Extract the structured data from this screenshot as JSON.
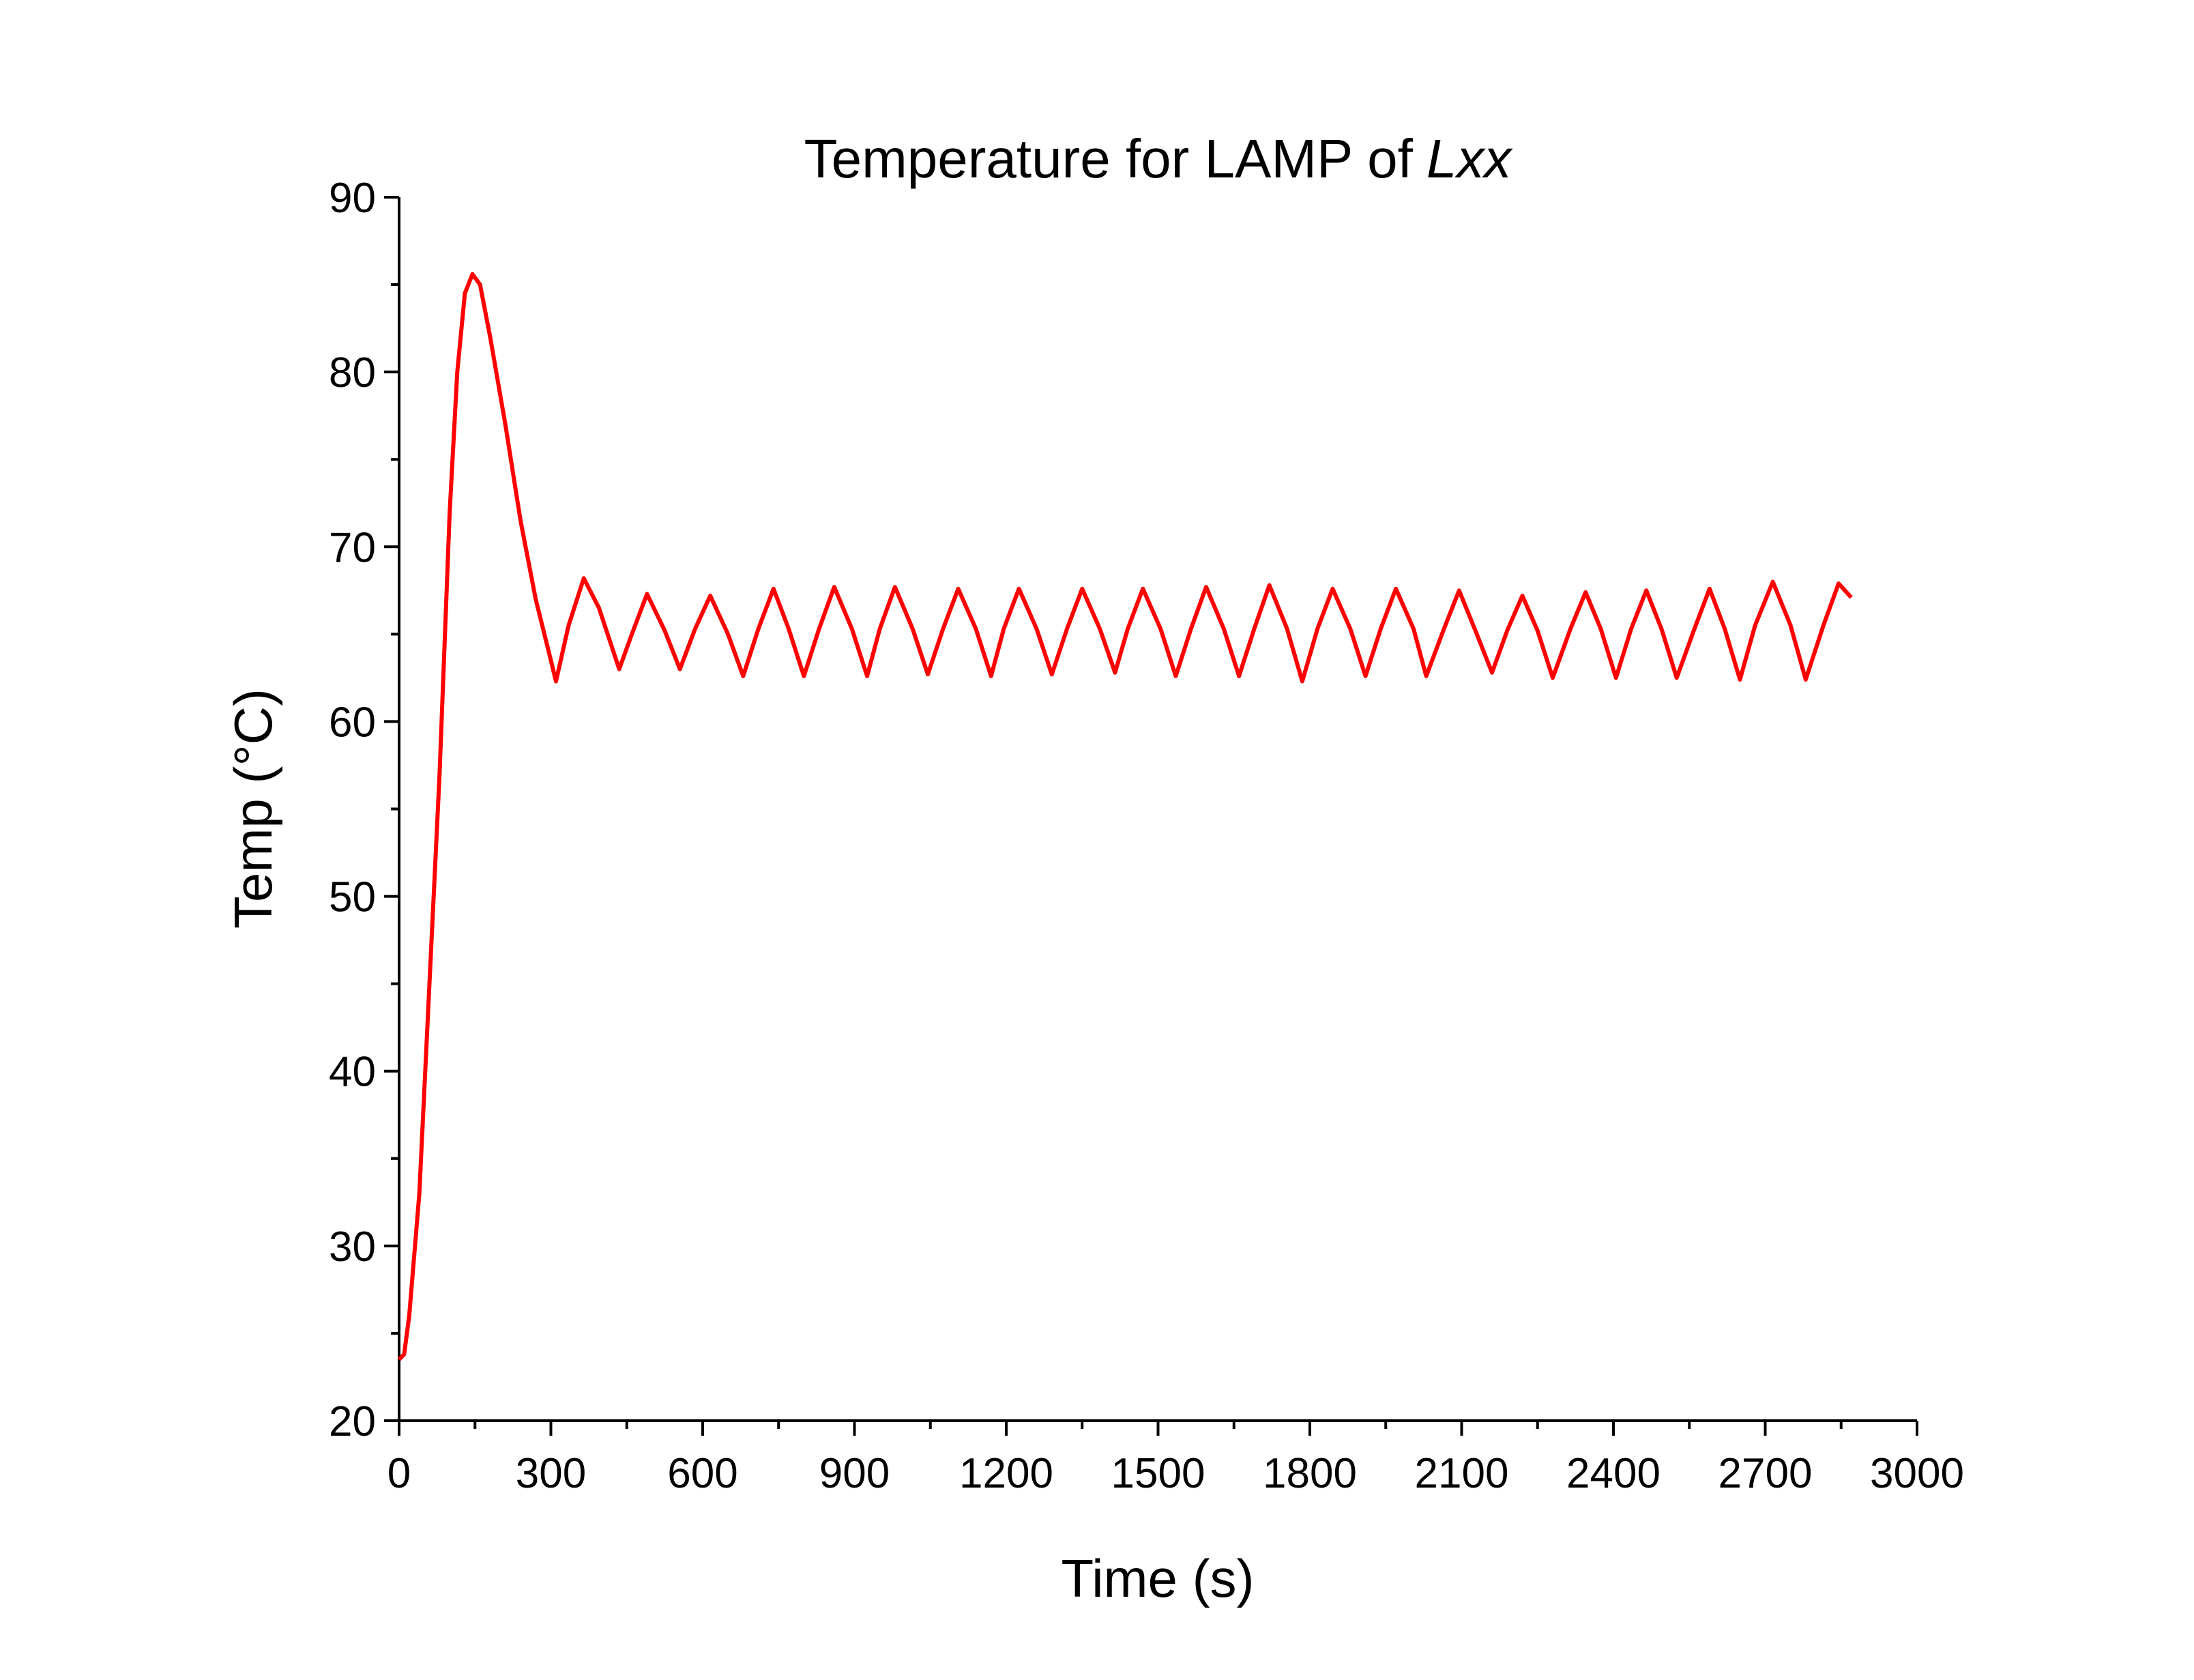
{
  "chart_data": {
    "type": "line",
    "title": {
      "text": "Temperature for LAMP of",
      "italic": "Lxx"
    },
    "x_label": "Time (s)",
    "y_label": "Temp (°C)",
    "xlim": [
      0,
      3000
    ],
    "xticks": [
      0,
      300,
      600,
      900,
      1200,
      1500,
      1800,
      2100,
      2400,
      2700,
      3000
    ],
    "xminorticks": [
      150,
      450,
      750,
      1050,
      1350,
      1650,
      1950,
      2250,
      2550,
      2850
    ],
    "ylim": [
      20,
      90
    ],
    "yticks": [
      20,
      30,
      40,
      50,
      60,
      70,
      80,
      90
    ],
    "yminorticks": [
      25,
      35,
      45,
      55,
      65,
      75,
      85
    ],
    "series": [
      {
        "name": "Temp",
        "color": "#ff0000",
        "x": [
          0,
          10,
          20,
          40,
          60,
          80,
          100,
          115,
          130,
          145,
          160,
          180,
          210,
          240,
          270,
          300,
          310,
          335,
          365,
          395,
          435,
          460,
          490,
          525,
          555,
          585,
          615,
          650,
          680,
          710,
          740,
          770,
          800,
          830,
          860,
          895,
          925,
          950,
          980,
          1015,
          1045,
          1075,
          1105,
          1140,
          1170,
          1195,
          1225,
          1260,
          1290,
          1320,
          1350,
          1385,
          1415,
          1440,
          1470,
          1505,
          1535,
          1565,
          1595,
          1630,
          1660,
          1690,
          1720,
          1755,
          1785,
          1815,
          1845,
          1880,
          1910,
          1940,
          1970,
          2005,
          2030,
          2065,
          2095,
          2130,
          2160,
          2190,
          2220,
          2250,
          2280,
          2315,
          2345,
          2375,
          2405,
          2435,
          2465,
          2495,
          2525,
          2560,
          2590,
          2620,
          2650,
          2680,
          2715,
          2750,
          2780,
          2815,
          2845,
          2870
        ],
        "values": [
          23.5,
          23.8,
          26,
          33,
          45,
          57,
          72,
          80,
          84.5,
          85.6,
          85,
          82,
          77,
          71.5,
          67,
          63.5,
          62.3,
          65.5,
          68.2,
          66.5,
          63,
          65,
          67.3,
          65.2,
          63,
          65.3,
          67.2,
          65,
          62.6,
          65.3,
          67.6,
          65.3,
          62.6,
          65.3,
          67.7,
          65.3,
          62.6,
          65.3,
          67.7,
          65.3,
          62.7,
          65.3,
          67.6,
          65.3,
          62.6,
          65.3,
          67.6,
          65.3,
          62.7,
          65.3,
          67.6,
          65.3,
          62.8,
          65.3,
          67.6,
          65.3,
          62.6,
          65.3,
          67.7,
          65.3,
          62.6,
          65.3,
          67.8,
          65.3,
          62.3,
          65.3,
          67.6,
          65.3,
          62.6,
          65.3,
          67.6,
          65.3,
          62.6,
          65.3,
          67.5,
          65,
          62.8,
          65.2,
          67.2,
          65.2,
          62.5,
          65.3,
          67.4,
          65.3,
          62.5,
          65.3,
          67.5,
          65.3,
          62.5,
          65.3,
          67.6,
          65.3,
          62.4,
          65.5,
          68,
          65.5,
          62.4,
          65.5,
          67.9,
          67.1
        ]
      }
    ]
  }
}
